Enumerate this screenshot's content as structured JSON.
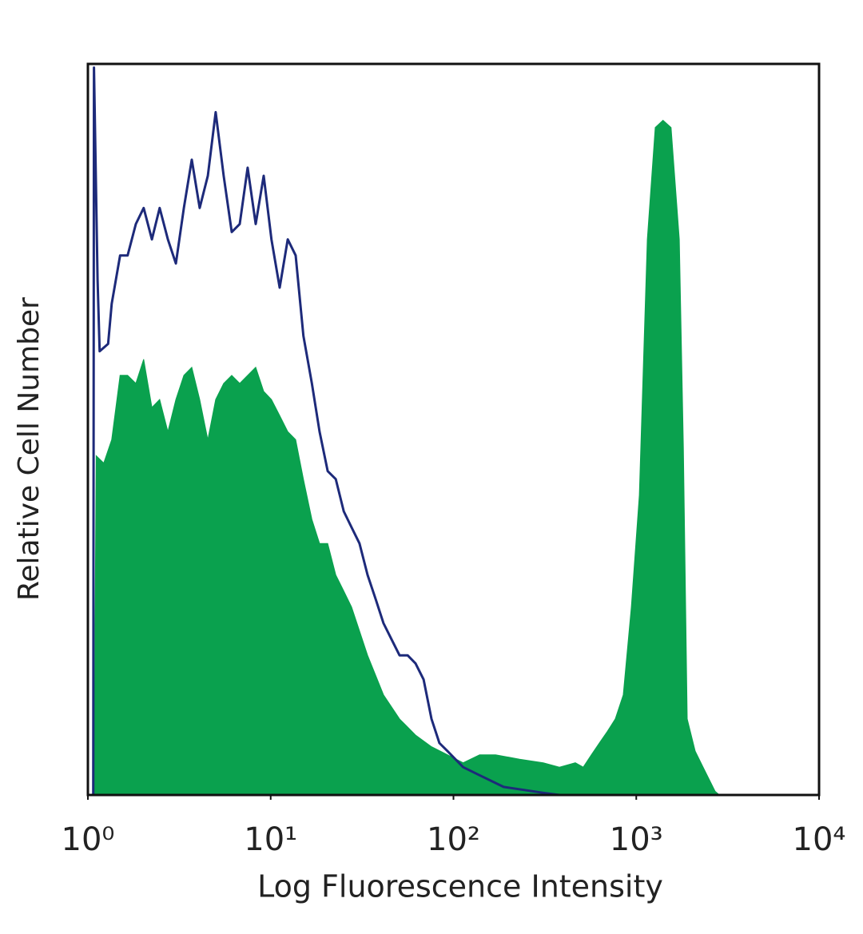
{
  "chart_data": {
    "type": "histogram-overlay",
    "x_label": "Log Fluorescence Intensity",
    "y_label": "Relative Cell Number",
    "xscale": "log",
    "xlim": [
      1,
      10000
    ],
    "ylim": [
      0,
      100
    ],
    "xticks": [
      {
        "value": 1,
        "label": "10⁰"
      },
      {
        "value": 10,
        "label": "10¹"
      },
      {
        "value": 100,
        "label": "10²"
      },
      {
        "value": 1000,
        "label": "10³"
      },
      {
        "value": 10000,
        "label": "10⁴"
      }
    ],
    "series": [
      {
        "style": "filled",
        "color": "#0aa14e",
        "x": [
          1.08,
          1.11,
          1.22,
          1.35,
          1.5,
          1.65,
          1.83,
          2.02,
          2.24,
          2.47,
          2.74,
          3.03,
          3.35,
          3.7,
          4.09,
          4.53,
          5.0,
          5.53,
          6.12,
          6.77,
          7.48,
          8.28,
          9.16,
          10.1,
          11.2,
          12.4,
          13.7,
          15.1,
          16.8,
          18.5,
          20.5,
          22.7,
          25.1,
          27.7,
          33.9,
          41.4,
          50.7,
          62.0,
          75.8,
          92.7,
          113,
          139,
          170,
          230,
          310,
          380,
          464,
          513,
          568,
          628,
          695,
          768,
          849,
          940,
          1040,
          1150,
          1270,
          1400,
          1550,
          1720,
          1810,
          1900,
          2100,
          2320,
          2700,
          2850
        ],
        "values": [
          0,
          46.4,
          45.4,
          48.6,
          57.4,
          57.4,
          56.3,
          59.6,
          53,
          54.1,
          49.7,
          54.1,
          57.4,
          58.5,
          54.1,
          48.6,
          54.1,
          56.3,
          57.4,
          56.3,
          57.4,
          58.5,
          55.2,
          54.1,
          51.9,
          49.7,
          48.6,
          43.2,
          37.7,
          34.4,
          34.4,
          30.1,
          27.9,
          25.7,
          19.1,
          13.7,
          10.4,
          8.2,
          6.6,
          5.5,
          4.4,
          5.5,
          5.5,
          4.9,
          4.4,
          3.8,
          4.4,
          3.8,
          5.5,
          7.1,
          8.7,
          10.4,
          13.7,
          25.7,
          41,
          76,
          91.3,
          92.3,
          91.3,
          76,
          47.5,
          10.4,
          6,
          3.8,
          0.5,
          0
        ]
      },
      {
        "style": "outline",
        "color": "#1d2a7a",
        "x": [
          1.07,
          1.08,
          1.13,
          1.16,
          1.29,
          1.35,
          1.5,
          1.65,
          1.83,
          2.02,
          2.24,
          2.47,
          2.74,
          3.03,
          3.35,
          3.7,
          4.09,
          4.53,
          5.0,
          5.53,
          6.12,
          6.77,
          7.48,
          8.28,
          9.16,
          10.1,
          11.2,
          12.4,
          13.7,
          15.1,
          16.8,
          18.5,
          20.5,
          22.7,
          25.1,
          27.7,
          30.6,
          33.9,
          37.5,
          41.4,
          45.8,
          50.7,
          56.1,
          62.0,
          68.6,
          75.8,
          83.8,
          92.7,
          113,
          139,
          188,
          310,
          380
        ],
        "values": [
          0,
          99.5,
          70.5,
          60.7,
          61.7,
          67.2,
          73.8,
          73.8,
          78.1,
          80.3,
          76,
          80.3,
          76,
          72.7,
          80.3,
          86.9,
          80.3,
          84.7,
          93.4,
          84.7,
          77,
          78.1,
          85.8,
          78.1,
          84.7,
          76,
          69.4,
          76,
          73.8,
          62.8,
          56.3,
          49.7,
          44.3,
          43.2,
          38.8,
          36.6,
          34.4,
          30.1,
          26.8,
          23.5,
          21.3,
          19.1,
          19.1,
          18,
          15.8,
          10.4,
          7.1,
          6,
          3.8,
          2.7,
          1.1,
          0.3,
          0
        ]
      }
    ]
  }
}
